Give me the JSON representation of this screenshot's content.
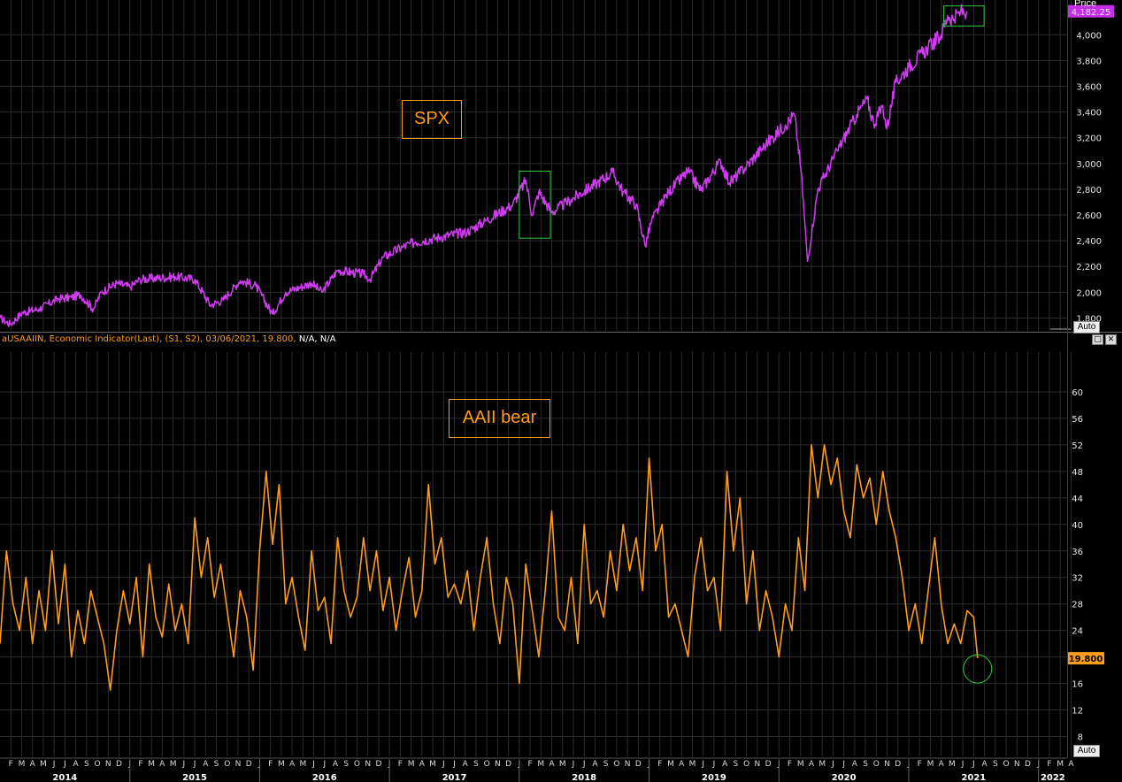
{
  "top_panel": {
    "axis_title": "Price",
    "annotation": "SPX",
    "last_value_label": "4,182.25",
    "auto_button": "Auto"
  },
  "bottom_panel": {
    "legend": {
      "name": "aUSAAIIN, Economic Indicator(Last), (S1, S2), 03/06/2021, 19.800,",
      "extra": " N/A, N/A"
    },
    "annotation": "AAII bear",
    "last_value_label": "19.800",
    "auto_button": "Auto",
    "restore_icon": "□",
    "close_icon": "✕"
  },
  "colors": {
    "background": "#000000",
    "grid": "#2c2c2c",
    "spx_line": "#d03cf0",
    "aaii_line": "#ff9c1a",
    "highlight_box": "#2ecc40",
    "last_value_spx_bg": "#c42ee6",
    "last_value_aaii_bg": "#ff9c1a"
  },
  "chart_data": [
    {
      "type": "line",
      "title": "SPX",
      "ylabel": "Price",
      "ylim": [
        1700,
        4270
      ],
      "yticks": [
        1800,
        2000,
        2200,
        2400,
        2600,
        2800,
        3000,
        3200,
        3400,
        3600,
        3800,
        4000
      ],
      "ytick_labels": [
        "1,800",
        "2,000",
        "2,200",
        "2,400",
        "2,600",
        "2,800",
        "3,000",
        "3,200",
        "3,400",
        "3,600",
        "3,800",
        "4,000"
      ],
      "x_unit": "decimal year",
      "series": [
        {
          "points": [
            [
              2014.0,
              1800
            ],
            [
              2014.08,
              1750
            ],
            [
              2014.17,
              1840
            ],
            [
              2014.3,
              1870
            ],
            [
              2014.45,
              1950
            ],
            [
              2014.55,
              1960
            ],
            [
              2014.62,
              1980
            ],
            [
              2014.72,
              1870
            ],
            [
              2014.78,
              2000
            ],
            [
              2014.9,
              2070
            ],
            [
              2015.0,
              2040
            ],
            [
              2015.08,
              2100
            ],
            [
              2015.35,
              2120
            ],
            [
              2015.5,
              2100
            ],
            [
              2015.62,
              1900
            ],
            [
              2015.72,
              1940
            ],
            [
              2015.85,
              2090
            ],
            [
              2015.97,
              2050
            ],
            [
              2016.1,
              1830
            ],
            [
              2016.2,
              2000
            ],
            [
              2016.4,
              2070
            ],
            [
              2016.48,
              2000
            ],
            [
              2016.6,
              2170
            ],
            [
              2016.8,
              2140
            ],
            [
              2016.85,
              2100
            ],
            [
              2016.95,
              2270
            ],
            [
              2017.1,
              2350
            ],
            [
              2017.2,
              2390
            ],
            [
              2017.4,
              2430
            ],
            [
              2017.6,
              2470
            ],
            [
              2017.75,
              2560
            ],
            [
              2017.95,
              2680
            ],
            [
              2018.05,
              2870
            ],
            [
              2018.1,
              2600
            ],
            [
              2018.15,
              2780
            ],
            [
              2018.25,
              2620
            ],
            [
              2018.4,
              2720
            ],
            [
              2018.6,
              2850
            ],
            [
              2018.72,
              2930
            ],
            [
              2018.8,
              2780
            ],
            [
              2018.9,
              2680
            ],
            [
              2018.97,
              2360
            ],
            [
              2019.02,
              2560
            ],
            [
              2019.15,
              2780
            ],
            [
              2019.3,
              2940
            ],
            [
              2019.4,
              2790
            ],
            [
              2019.55,
              3020
            ],
            [
              2019.62,
              2850
            ],
            [
              2019.75,
              2980
            ],
            [
              2019.9,
              3150
            ],
            [
              2020.05,
              3300
            ],
            [
              2020.12,
              3380
            ],
            [
              2020.17,
              2950
            ],
            [
              2020.22,
              2240
            ],
            [
              2020.3,
              2800
            ],
            [
              2020.45,
              3100
            ],
            [
              2020.6,
              3380
            ],
            [
              2020.68,
              3500
            ],
            [
              2020.73,
              3310
            ],
            [
              2020.8,
              3450
            ],
            [
              2020.83,
              3270
            ],
            [
              2020.9,
              3630
            ],
            [
              2021.0,
              3750
            ],
            [
              2021.15,
              3900
            ],
            [
              2021.25,
              4000
            ],
            [
              2021.3,
              4150
            ],
            [
              2021.35,
              4120
            ],
            [
              2021.4,
              4180
            ],
            [
              2021.45,
              4182.25
            ]
          ]
        }
      ],
      "highlights": [
        {
          "x_range": [
            2018.0,
            2018.24
          ],
          "y_range": [
            2420,
            2940
          ]
        },
        {
          "x_range": [
            2021.27,
            2021.58
          ],
          "y_range": [
            4068,
            4224
          ]
        }
      ],
      "last_value": 4182.25
    },
    {
      "type": "line",
      "title": "AAII bear",
      "ylim": [
        5,
        66
      ],
      "yticks": [
        8,
        12,
        16,
        20,
        24,
        28,
        32,
        36,
        40,
        44,
        48,
        52,
        56,
        60
      ],
      "x_unit": "decimal year",
      "series": [
        {
          "name": "aUSAAIIN",
          "points": [
            [
              2014.0,
              22
            ],
            [
              2014.05,
              36
            ],
            [
              2014.1,
              28
            ],
            [
              2014.15,
              24
            ],
            [
              2014.2,
              32
            ],
            [
              2014.25,
              22
            ],
            [
              2014.3,
              30
            ],
            [
              2014.35,
              24
            ],
            [
              2014.4,
              36
            ],
            [
              2014.45,
              25
            ],
            [
              2014.5,
              34
            ],
            [
              2014.55,
              20
            ],
            [
              2014.6,
              27
            ],
            [
              2014.65,
              22
            ],
            [
              2014.7,
              30
            ],
            [
              2014.75,
              26
            ],
            [
              2014.8,
              22
            ],
            [
              2014.85,
              15
            ],
            [
              2014.9,
              24
            ],
            [
              2014.95,
              30
            ],
            [
              2015.0,
              25
            ],
            [
              2015.05,
              32
            ],
            [
              2015.1,
              20
            ],
            [
              2015.15,
              34
            ],
            [
              2015.2,
              26
            ],
            [
              2015.25,
              23
            ],
            [
              2015.3,
              31
            ],
            [
              2015.35,
              24
            ],
            [
              2015.4,
              28
            ],
            [
              2015.45,
              22
            ],
            [
              2015.5,
              41
            ],
            [
              2015.55,
              32
            ],
            [
              2015.6,
              38
            ],
            [
              2015.65,
              29
            ],
            [
              2015.7,
              34
            ],
            [
              2015.75,
              27
            ],
            [
              2015.8,
              20
            ],
            [
              2015.85,
              30
            ],
            [
              2015.9,
              26
            ],
            [
              2015.95,
              18
            ],
            [
              2016.0,
              36
            ],
            [
              2016.05,
              48
            ],
            [
              2016.1,
              37
            ],
            [
              2016.15,
              46
            ],
            [
              2016.2,
              28
            ],
            [
              2016.25,
              32
            ],
            [
              2016.3,
              26
            ],
            [
              2016.35,
              21
            ],
            [
              2016.4,
              36
            ],
            [
              2016.45,
              27
            ],
            [
              2016.5,
              29
            ],
            [
              2016.55,
              22
            ],
            [
              2016.6,
              38
            ],
            [
              2016.65,
              30
            ],
            [
              2016.7,
              26
            ],
            [
              2016.75,
              29
            ],
            [
              2016.8,
              38
            ],
            [
              2016.85,
              30
            ],
            [
              2016.9,
              36
            ],
            [
              2016.95,
              27
            ],
            [
              2017.0,
              32
            ],
            [
              2017.05,
              24
            ],
            [
              2017.1,
              30
            ],
            [
              2017.15,
              35
            ],
            [
              2017.2,
              26
            ],
            [
              2017.25,
              30
            ],
            [
              2017.3,
              46
            ],
            [
              2017.35,
              34
            ],
            [
              2017.4,
              38
            ],
            [
              2017.45,
              29
            ],
            [
              2017.5,
              31
            ],
            [
              2017.55,
              28
            ],
            [
              2017.6,
              33
            ],
            [
              2017.65,
              24
            ],
            [
              2017.7,
              32
            ],
            [
              2017.75,
              38
            ],
            [
              2017.8,
              28
            ],
            [
              2017.85,
              22
            ],
            [
              2017.9,
              32
            ],
            [
              2017.95,
              28
            ],
            [
              2018.0,
              16
            ],
            [
              2018.05,
              34
            ],
            [
              2018.1,
              27
            ],
            [
              2018.15,
              20
            ],
            [
              2018.2,
              30
            ],
            [
              2018.25,
              42
            ],
            [
              2018.3,
              26
            ],
            [
              2018.35,
              24
            ],
            [
              2018.4,
              32
            ],
            [
              2018.45,
              22
            ],
            [
              2018.5,
              40
            ],
            [
              2018.55,
              28
            ],
            [
              2018.6,
              30
            ],
            [
              2018.65,
              26
            ],
            [
              2018.7,
              36
            ],
            [
              2018.75,
              30
            ],
            [
              2018.8,
              40
            ],
            [
              2018.85,
              33
            ],
            [
              2018.9,
              38
            ],
            [
              2018.95,
              30
            ],
            [
              2019.0,
              50
            ],
            [
              2019.05,
              36
            ],
            [
              2019.1,
              40
            ],
            [
              2019.15,
              26
            ],
            [
              2019.2,
              28
            ],
            [
              2019.25,
              24
            ],
            [
              2019.3,
              20
            ],
            [
              2019.35,
              32
            ],
            [
              2019.4,
              38
            ],
            [
              2019.45,
              30
            ],
            [
              2019.5,
              32
            ],
            [
              2019.55,
              24
            ],
            [
              2019.6,
              48
            ],
            [
              2019.65,
              36
            ],
            [
              2019.7,
              44
            ],
            [
              2019.75,
              28
            ],
            [
              2019.8,
              36
            ],
            [
              2019.85,
              24
            ],
            [
              2019.9,
              30
            ],
            [
              2019.95,
              26
            ],
            [
              2020.0,
              20
            ],
            [
              2020.05,
              28
            ],
            [
              2020.1,
              24
            ],
            [
              2020.15,
              38
            ],
            [
              2020.2,
              30
            ],
            [
              2020.25,
              52
            ],
            [
              2020.3,
              44
            ],
            [
              2020.35,
              52
            ],
            [
              2020.4,
              46
            ],
            [
              2020.45,
              50
            ],
            [
              2020.5,
              42
            ],
            [
              2020.55,
              38
            ],
            [
              2020.6,
              49
            ],
            [
              2020.65,
              44
            ],
            [
              2020.7,
              47
            ],
            [
              2020.75,
              40
            ],
            [
              2020.8,
              48
            ],
            [
              2020.85,
              42
            ],
            [
              2020.9,
              38
            ],
            [
              2020.95,
              32
            ],
            [
              2021.0,
              24
            ],
            [
              2021.05,
              28
            ],
            [
              2021.1,
              22
            ],
            [
              2021.15,
              30
            ],
            [
              2021.2,
              38
            ],
            [
              2021.25,
              28
            ],
            [
              2021.3,
              22
            ],
            [
              2021.35,
              25
            ],
            [
              2021.4,
              22
            ],
            [
              2021.45,
              27
            ],
            [
              2021.5,
              26
            ],
            [
              2021.53,
              19.8
            ]
          ]
        }
      ],
      "highlights": [
        {
          "shape": "circle",
          "x": 2021.53,
          "y": 19.8
        }
      ],
      "last_value": 19.8
    }
  ],
  "x_axis": {
    "month_labels": [
      "F",
      "M",
      "A",
      "M",
      "J",
      "J",
      "A",
      "S",
      "O",
      "N",
      "D",
      "J",
      "F",
      "M",
      "A",
      "M",
      "J",
      "J",
      "A",
      "S",
      "O",
      "N",
      "D",
      "J",
      "F",
      "M",
      "A",
      "M",
      "J",
      "J",
      "A",
      "S",
      "O",
      "N",
      "D",
      "J",
      "F",
      "M",
      "A",
      "M",
      "J",
      "J",
      "A",
      "S",
      "O",
      "N",
      "D",
      "J",
      "F",
      "M",
      "A",
      "M",
      "J",
      "J",
      "A",
      "S",
      "O",
      "N",
      "D",
      "J",
      "F",
      "M",
      "A",
      "M",
      "J",
      "J",
      "A",
      "S",
      "O",
      "N",
      "D",
      "J",
      "F",
      "M",
      "A",
      "M",
      "J",
      "J",
      "A",
      "S",
      "O",
      "N",
      "D",
      "J",
      "F",
      "M",
      "A",
      "M",
      "J",
      "J",
      "A",
      "S",
      "O",
      "N",
      "D",
      "J",
      "F",
      "M",
      "A"
    ],
    "year_labels": [
      "2014",
      "2015",
      "2016",
      "2017",
      "2018",
      "2019",
      "2020",
      "2021",
      "2022"
    ]
  }
}
